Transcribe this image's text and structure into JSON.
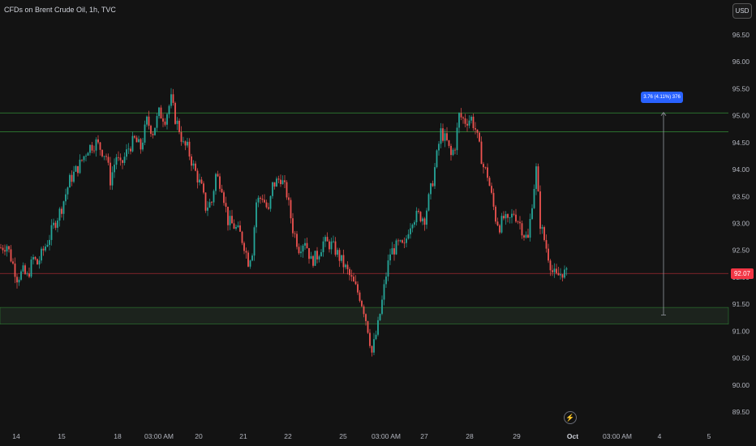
{
  "header": {
    "title": "CFDs on Brent Crude Oil, 1h, TVC"
  },
  "currency_button": {
    "label": "USD"
  },
  "last_price_tag": {
    "label": "92.07"
  },
  "measure_label": {
    "text": "3.76 (4.11%) 376"
  },
  "colors": {
    "background": "#131313",
    "up": "#26a69a",
    "down": "#ef5350",
    "resistance": "#2e7d32",
    "support_zone": "#1c231d",
    "last_price": "#f23645",
    "measure": "#2962ff"
  },
  "icons": {
    "bolt": "lightning-icon"
  },
  "chart_data": {
    "type": "candlestick",
    "title": "CFDs on Brent Crude Oil, 1h, TVC",
    "x_tick_labels": [
      "14",
      "15",
      "18",
      "03:00 AM",
      "20",
      "21",
      "22",
      "25",
      "03:00 AM",
      "27",
      "28",
      "29",
      "Oct",
      "03:00 AM",
      "4",
      "5"
    ],
    "y_tick_labels": [
      "96.50",
      "96.00",
      "95.50",
      "95.00",
      "94.50",
      "94.00",
      "93.50",
      "93.00",
      "92.50",
      "92.00",
      "91.50",
      "91.00",
      "90.50",
      "90.00",
      "89.50"
    ],
    "ylim": [
      89.4,
      96.9
    ],
    "last_price": 92.07,
    "horizontal_lines": [
      {
        "price": 95.05,
        "color": "#2e7d32"
      },
      {
        "price": 94.7,
        "color": "#2e7d32"
      },
      {
        "price": 92.07,
        "color": "#a02833"
      }
    ],
    "support_zone": {
      "top": 91.44,
      "bottom": 91.13
    },
    "measure": {
      "from": 91.3,
      "to": 95.06,
      "change": 3.76,
      "percent": 4.11,
      "ticks": 376
    },
    "path": [
      [
        92.55,
        0
      ],
      [
        92.6,
        3
      ],
      [
        92.0,
        8
      ],
      [
        92.1,
        11
      ],
      [
        92.0,
        13
      ],
      [
        92.35,
        16
      ],
      [
        92.25,
        18
      ],
      [
        92.75,
        24
      ],
      [
        92.95,
        26
      ],
      [
        93.3,
        30
      ],
      [
        93.8,
        34
      ],
      [
        94.1,
        39
      ],
      [
        94.4,
        43
      ],
      [
        94.5,
        47
      ],
      [
        94.25,
        52
      ],
      [
        93.8,
        54
      ],
      [
        94.25,
        57
      ],
      [
        94.05,
        59
      ],
      [
        94.4,
        63
      ],
      [
        94.55,
        66
      ],
      [
        94.4,
        69
      ],
      [
        94.9,
        72
      ],
      [
        94.7,
        75
      ],
      [
        95.05,
        78
      ],
      [
        94.95,
        81
      ],
      [
        95.3,
        84
      ],
      [
        94.95,
        86
      ],
      [
        94.75,
        88
      ],
      [
        94.45,
        90
      ],
      [
        94.4,
        92
      ],
      [
        94.05,
        95
      ],
      [
        93.65,
        99
      ],
      [
        93.3,
        101
      ],
      [
        93.4,
        104
      ],
      [
        93.9,
        106
      ],
      [
        93.7,
        109
      ],
      [
        93.05,
        112
      ],
      [
        92.95,
        115
      ],
      [
        92.8,
        118
      ],
      [
        92.6,
        120
      ],
      [
        92.3,
        122
      ],
      [
        92.5,
        124
      ],
      [
        93.4,
        126
      ],
      [
        93.5,
        129
      ],
      [
        93.2,
        132
      ],
      [
        93.7,
        134
      ],
      [
        93.85,
        138
      ],
      [
        93.55,
        141
      ],
      [
        92.9,
        144
      ],
      [
        92.55,
        147
      ],
      [
        92.7,
        150
      ],
      [
        92.3,
        153
      ],
      [
        92.4,
        156
      ],
      [
        92.65,
        159
      ],
      [
        92.6,
        163
      ],
      [
        92.5,
        165
      ],
      [
        92.3,
        168
      ],
      [
        92.1,
        171
      ],
      [
        91.95,
        173
      ],
      [
        91.8,
        175
      ],
      [
        91.65,
        177
      ],
      [
        91.4,
        179
      ],
      [
        91.05,
        181
      ],
      [
        90.6,
        183
      ],
      [
        91.1,
        186
      ],
      [
        91.55,
        188
      ],
      [
        92.05,
        190
      ],
      [
        92.45,
        192
      ],
      [
        92.6,
        196
      ],
      [
        92.55,
        199
      ],
      [
        92.9,
        201
      ],
      [
        93.1,
        203
      ],
      [
        93.15,
        206
      ],
      [
        93.1,
        209
      ],
      [
        93.45,
        211
      ],
      [
        93.8,
        213
      ],
      [
        94.25,
        215
      ],
      [
        94.7,
        217
      ],
      [
        94.5,
        220
      ],
      [
        94.25,
        222
      ],
      [
        94.45,
        224
      ],
      [
        95.0,
        226
      ],
      [
        94.9,
        229
      ],
      [
        94.95,
        232
      ],
      [
        94.75,
        234
      ],
      [
        94.4,
        236
      ],
      [
        94.05,
        238
      ],
      [
        93.9,
        240
      ],
      [
        93.5,
        242
      ],
      [
        93.1,
        244
      ],
      [
        92.95,
        246
      ],
      [
        93.1,
        248
      ],
      [
        93.0,
        250
      ],
      [
        93.2,
        253
      ],
      [
        93.0,
        256
      ],
      [
        92.8,
        258
      ],
      [
        92.7,
        260
      ],
      [
        93.4,
        262
      ],
      [
        94.0,
        264
      ],
      [
        93.0,
        266
      ],
      [
        92.7,
        268
      ],
      [
        92.4,
        270
      ],
      [
        92.1,
        272
      ],
      [
        92.0,
        274
      ],
      [
        92.1,
        277
      ],
      [
        92.05,
        279
      ]
    ]
  }
}
